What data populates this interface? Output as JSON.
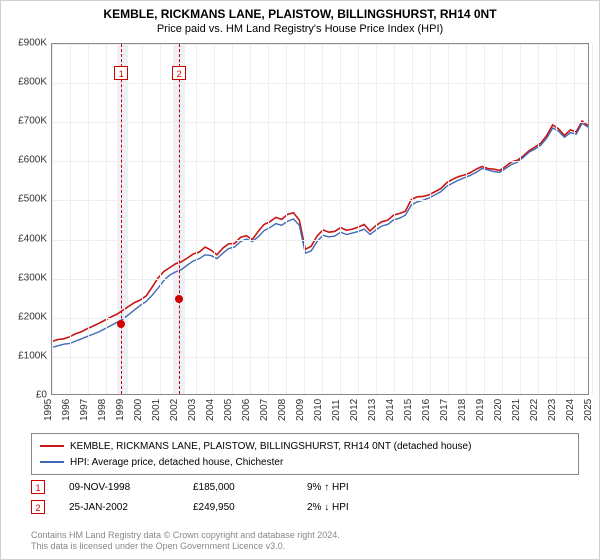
{
  "title": "KEMBLE, RICKMANS LANE, PLAISTOW, BILLINGSHURST, RH14 0NT",
  "subtitle": "Price paid vs. HM Land Registry's House Price Index (HPI)",
  "chart": {
    "type": "line",
    "background_color": "#ffffff",
    "grid_color": "#eeeeee",
    "axis_color": "#888888",
    "x_years": [
      1995,
      1996,
      1997,
      1998,
      1999,
      2000,
      2001,
      2002,
      2003,
      2004,
      2005,
      2006,
      2007,
      2008,
      2009,
      2010,
      2011,
      2012,
      2013,
      2014,
      2015,
      2016,
      2017,
      2018,
      2019,
      2020,
      2021,
      2022,
      2023,
      2024,
      2025
    ],
    "y_ticks": [
      0,
      100,
      200,
      300,
      400,
      500,
      600,
      700,
      800,
      900
    ],
    "y_tick_labels": [
      "£0",
      "£100K",
      "£200K",
      "£300K",
      "£400K",
      "£500K",
      "£600K",
      "£700K",
      "£800K",
      "£900K"
    ],
    "ylim": [
      0,
      900
    ],
    "highlight_bands": [
      {
        "from_year": 1998.6,
        "to_year": 1999.2
      },
      {
        "from_year": 2001.7,
        "to_year": 2002.4
      }
    ],
    "series": [
      {
        "name": "property",
        "color": "#c81414",
        "width": 1.6,
        "points_y": [
          135,
          140,
          142,
          147,
          155,
          160,
          168,
          175,
          182,
          190,
          198,
          205,
          215,
          225,
          235,
          242,
          252,
          275,
          298,
          315,
          325,
          335,
          340,
          350,
          360,
          365,
          378,
          370,
          358,
          375,
          386,
          387,
          403,
          407,
          397,
          418,
          436,
          443,
          454,
          449,
          462,
          466,
          447,
          372,
          380,
          406,
          422,
          416,
          418,
          428,
          421,
          424,
          429,
          436,
          419,
          433,
          443,
          447,
          460,
          464,
          470,
          500,
          507,
          508,
          512,
          520,
          528,
          543,
          552,
          559,
          563,
          569,
          578,
          585,
          580,
          578,
          575,
          585,
          597,
          601,
          612,
          626,
          635,
          645,
          665,
          692,
          682,
          665,
          679,
          674,
          702,
          690
        ]
      },
      {
        "name": "hpi",
        "color": "#4169b5",
        "width": 1.4,
        "points_y": [
          120,
          124,
          128,
          130,
          136,
          142,
          148,
          154,
          160,
          168,
          176,
          184,
          192,
          204,
          216,
          228,
          238,
          254,
          272,
          292,
          306,
          314,
          320,
          332,
          342,
          348,
          358,
          356,
          348,
          362,
          374,
          378,
          392,
          398,
          392,
          404,
          420,
          428,
          438,
          434,
          444,
          450,
          434,
          362,
          368,
          392,
          408,
          404,
          406,
          416,
          410,
          414,
          418,
          424,
          410,
          422,
          432,
          436,
          448,
          452,
          460,
          486,
          494,
          498,
          504,
          512,
          520,
          534,
          542,
          550,
          556,
          562,
          570,
          580,
          576,
          572,
          570,
          580,
          590,
          596,
          608,
          622,
          630,
          640,
          658,
          684,
          676,
          660,
          672,
          668,
          696,
          686
        ]
      }
    ],
    "markers": [
      {
        "n": "1",
        "year": 1998.85,
        "y": 185,
        "box_top": 22
      },
      {
        "n": "2",
        "year": 2002.06,
        "y": 248,
        "box_top": 22
      }
    ],
    "label_fontsize": 10,
    "title_fontsize": 12
  },
  "legend": [
    {
      "color": "#c81414",
      "label": "KEMBLE, RICKMANS LANE, PLAISTOW, BILLINGSHURST, RH14 0NT (detached house)"
    },
    {
      "color": "#4169b5",
      "label": "HPI: Average price, detached house, Chichester"
    }
  ],
  "marker_table": [
    {
      "n": "1",
      "date": "09-NOV-1998",
      "price": "£185,000",
      "delta": "9% ↑ HPI"
    },
    {
      "n": "2",
      "date": "25-JAN-2002",
      "price": "£249,950",
      "delta": "2% ↓ HPI"
    }
  ],
  "footer_line1": "Contains HM Land Registry data © Crown copyright and database right 2024.",
  "footer_line2": "This data is licensed under the Open Government Licence v3.0."
}
